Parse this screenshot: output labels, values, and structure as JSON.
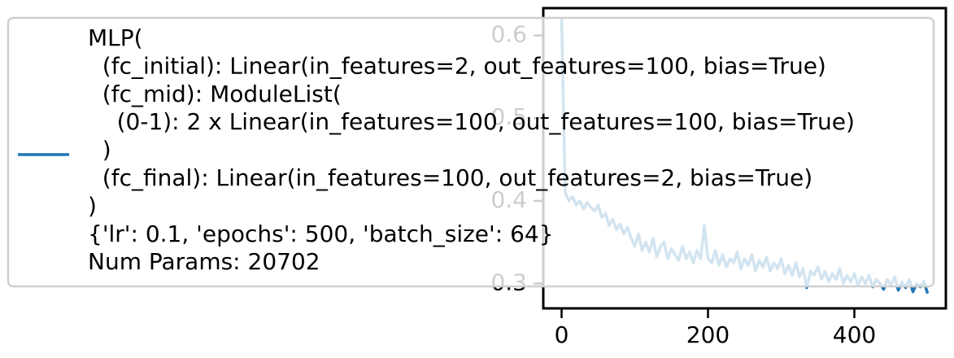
{
  "chart_data": {
    "type": "line",
    "x": [
      0,
      5,
      10,
      15,
      20,
      25,
      30,
      35,
      40,
      45,
      50,
      55,
      60,
      65,
      70,
      75,
      80,
      85,
      90,
      95,
      100,
      105,
      110,
      115,
      120,
      125,
      130,
      135,
      140,
      145,
      150,
      155,
      160,
      165,
      170,
      175,
      180,
      185,
      190,
      195,
      200,
      205,
      210,
      215,
      220,
      225,
      230,
      235,
      240,
      245,
      250,
      255,
      260,
      265,
      270,
      275,
      280,
      285,
      290,
      295,
      300,
      305,
      310,
      315,
      320,
      325,
      330,
      335,
      340,
      345,
      350,
      355,
      360,
      365,
      370,
      375,
      380,
      385,
      390,
      395,
      400,
      405,
      410,
      415,
      420,
      425,
      430,
      435,
      440,
      445,
      450,
      455,
      460,
      465,
      470,
      475,
      480,
      485,
      490,
      495,
      500
    ],
    "series": [
      {
        "name": "MLP(\n  (fc_initial): Linear(in_features=2, out_features=100, bias=True)\n  (fc_mid): ModuleList(\n    (0-1): 2 x Linear(in_features=100, out_features=100, bias=True)\n  )\n  (fc_final): Linear(in_features=100, out_features=2, bias=True)\n)\n{'lr': 0.1, 'epochs': 500, 'batch_size': 64}\nNum Params: 20702",
        "color": "#1f77b4",
        "values": [
          0.62,
          0.41,
          0.4,
          0.405,
          0.395,
          0.4,
          0.39,
          0.398,
          0.392,
          0.388,
          0.395,
          0.38,
          0.385,
          0.37,
          0.378,
          0.365,
          0.372,
          0.36,
          0.368,
          0.355,
          0.345,
          0.36,
          0.34,
          0.35,
          0.338,
          0.355,
          0.332,
          0.345,
          0.35,
          0.33,
          0.342,
          0.335,
          0.328,
          0.345,
          0.33,
          0.338,
          0.325,
          0.34,
          0.33,
          0.37,
          0.33,
          0.325,
          0.34,
          0.322,
          0.335,
          0.32,
          0.33,
          0.325,
          0.338,
          0.318,
          0.33,
          0.322,
          0.335,
          0.315,
          0.328,
          0.32,
          0.332,
          0.315,
          0.325,
          0.318,
          0.33,
          0.312,
          0.322,
          0.31,
          0.325,
          0.308,
          0.318,
          0.295,
          0.315,
          0.31,
          0.32,
          0.305,
          0.315,
          0.302,
          0.312,
          0.305,
          0.318,
          0.3,
          0.31,
          0.302,
          0.312,
          0.298,
          0.308,
          0.3,
          0.31,
          0.296,
          0.305,
          0.3,
          0.293,
          0.305,
          0.298,
          0.308,
          0.292,
          0.302,
          0.295,
          0.305,
          0.29,
          0.3,
          0.296,
          0.303,
          0.288
        ]
      }
    ],
    "xlim": [
      -25,
      525
    ],
    "ylim": [
      0.27,
      0.633
    ],
    "xticks": [
      0,
      200,
      400
    ],
    "yticks": [
      0.3,
      0.4,
      0.5,
      0.6
    ]
  }
}
